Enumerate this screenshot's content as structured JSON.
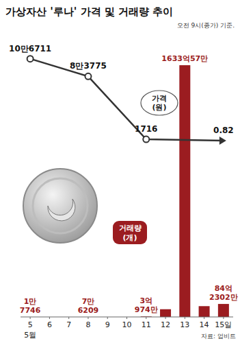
{
  "chart_data": {
    "type": "combo",
    "title": "가상자산 '루나' 가격 및 거래량 추이",
    "subtitle": "오전 9시(종가) 기준.",
    "source": "자료: 업비트",
    "xlim": [
      4.5,
      15.5
    ],
    "xticks": [
      5,
      6,
      7,
      8,
      9,
      10,
      11,
      12,
      13,
      14,
      {
        "value": 15,
        "label": "15일"
      }
    ],
    "annotations": [
      {
        "text": "5월",
        "x": 5
      }
    ],
    "ylim": [
      0,
      110000
    ],
    "y2lim": [
      0,
      170000000000
    ],
    "tick_labels": "x",
    "series": [
      {
        "name": "가격 (원)",
        "type": "line",
        "color": "#333333",
        "marker": "circle",
        "x": [
          5,
          8,
          11,
          15
        ],
        "values": [
          106711,
          83775,
          1716,
          0.82
        ],
        "value_labels": [
          "10만6711",
          "8만3775",
          "1716",
          "0.82"
        ],
        "data_labels": true
      },
      {
        "name": "거래량 (개)",
        "type": "bar",
        "axis": "y2",
        "color": "#9b1c20",
        "x": [
          5,
          8,
          11,
          12,
          13,
          14,
          15
        ],
        "values": [
          17746,
          76209,
          309740000,
          5000000000,
          163300570000,
          7000000000,
          8423020000
        ],
        "value_labels": [
          "1만 7746",
          "7만 6209",
          "3억 974만",
          null,
          "1633억57만",
          null,
          "84억 2302만"
        ],
        "data_labels": true
      }
    ]
  }
}
